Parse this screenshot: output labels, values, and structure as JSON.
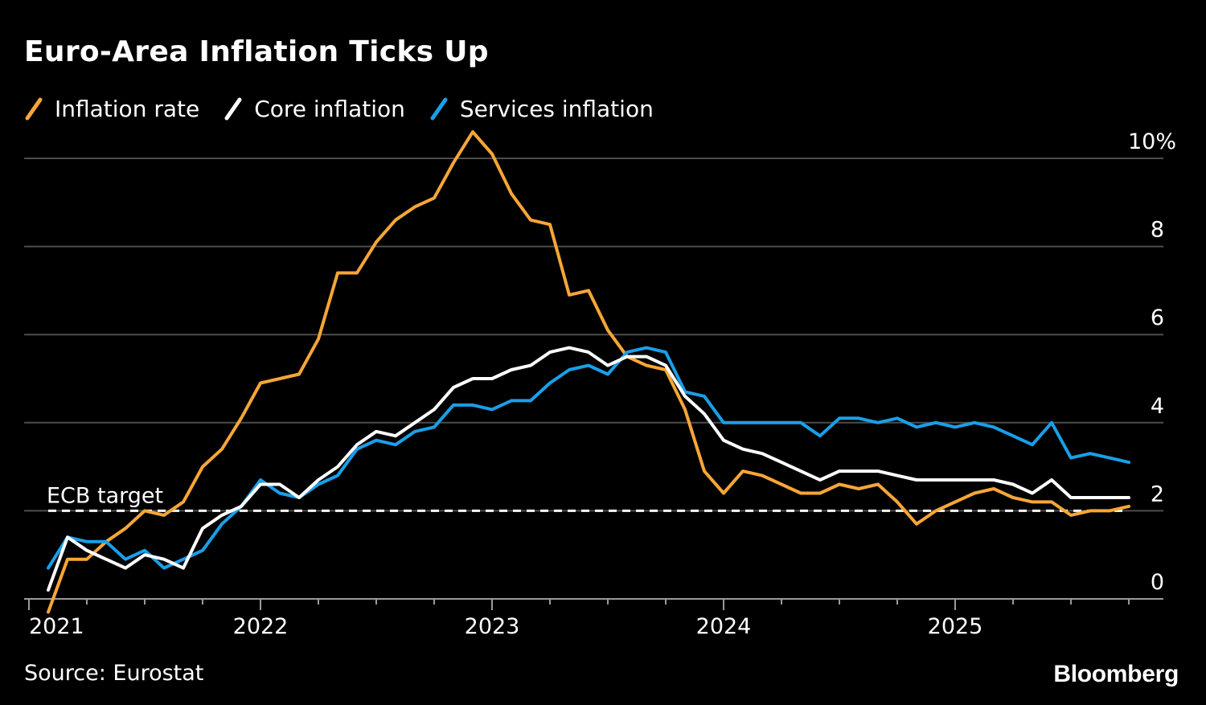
{
  "title": "Euro-Area Inflation Ticks Up",
  "source": "Source: Eurostat",
  "brand": "Bloomberg",
  "chart_data": {
    "type": "line",
    "title": "Euro-Area Inflation Ticks Up",
    "xlabel": "",
    "ylabel": "",
    "ylim": [
      0,
      10
    ],
    "grid": true,
    "legend_position": "top-left",
    "y_ticks": [
      {
        "value": 10,
        "label": "10%"
      },
      {
        "value": 8,
        "label": "8"
      },
      {
        "value": 6,
        "label": "6"
      },
      {
        "value": 4,
        "label": "4"
      },
      {
        "value": 2,
        "label": "2"
      },
      {
        "value": 0,
        "label": "0"
      }
    ],
    "x_ticks": [
      {
        "index": 0,
        "label": "2021"
      },
      {
        "index": 12,
        "label": "2022"
      },
      {
        "index": 24,
        "label": "2023"
      },
      {
        "index": 36,
        "label": "2024"
      },
      {
        "index": 48,
        "label": "2025"
      }
    ],
    "reference_line": {
      "value": 2,
      "label": "ECB target"
    },
    "series": [
      {
        "name": "Inflation rate",
        "color": "#f7a637",
        "values": [
          -0.3,
          0.9,
          0.9,
          1.3,
          1.6,
          2.0,
          1.9,
          2.2,
          3.0,
          3.4,
          4.1,
          4.9,
          5.0,
          5.1,
          5.9,
          7.4,
          7.4,
          8.1,
          8.6,
          8.9,
          9.1,
          9.9,
          10.6,
          10.1,
          9.2,
          8.6,
          8.5,
          6.9,
          7.0,
          6.1,
          5.5,
          5.3,
          5.2,
          4.3,
          2.9,
          2.4,
          2.9,
          2.8,
          2.6,
          2.4,
          2.4,
          2.6,
          2.5,
          2.6,
          2.2,
          1.7,
          2.0,
          2.2,
          2.4,
          2.5,
          2.3,
          2.2,
          2.2,
          1.9,
          2.0,
          2.0,
          2.1
        ]
      },
      {
        "name": "Core inflation",
        "color": "#ffffff",
        "values": [
          0.2,
          1.4,
          1.1,
          0.9,
          0.7,
          1.0,
          0.9,
          0.7,
          1.6,
          1.9,
          2.1,
          2.6,
          2.6,
          2.3,
          2.7,
          3.0,
          3.5,
          3.8,
          3.7,
          4.0,
          4.3,
          4.8,
          5.0,
          5.0,
          5.2,
          5.3,
          5.6,
          5.7,
          5.6,
          5.3,
          5.5,
          5.5,
          5.3,
          4.6,
          4.2,
          3.6,
          3.4,
          3.3,
          3.1,
          2.9,
          2.7,
          2.9,
          2.9,
          2.9,
          2.8,
          2.7,
          2.7,
          2.7,
          2.7,
          2.7,
          2.6,
          2.4,
          2.7,
          2.3,
          2.3,
          2.3,
          2.3
        ]
      },
      {
        "name": "Services inflation",
        "color": "#1a9fe8",
        "values": [
          0.7,
          1.4,
          1.3,
          1.3,
          0.9,
          1.1,
          0.7,
          0.9,
          1.1,
          1.7,
          2.1,
          2.7,
          2.4,
          2.3,
          2.6,
          2.8,
          3.4,
          3.6,
          3.5,
          3.8,
          3.9,
          4.4,
          4.4,
          4.3,
          4.5,
          4.5,
          4.9,
          5.2,
          5.3,
          5.1,
          5.6,
          5.7,
          5.6,
          4.7,
          4.6,
          4.0,
          4.0,
          4.0,
          4.0,
          4.0,
          3.7,
          4.1,
          4.1,
          4.0,
          4.1,
          3.9,
          4.0,
          3.9,
          4.0,
          3.9,
          3.7,
          3.5,
          4.0,
          3.2,
          3.3,
          3.2,
          3.1
        ]
      }
    ]
  }
}
